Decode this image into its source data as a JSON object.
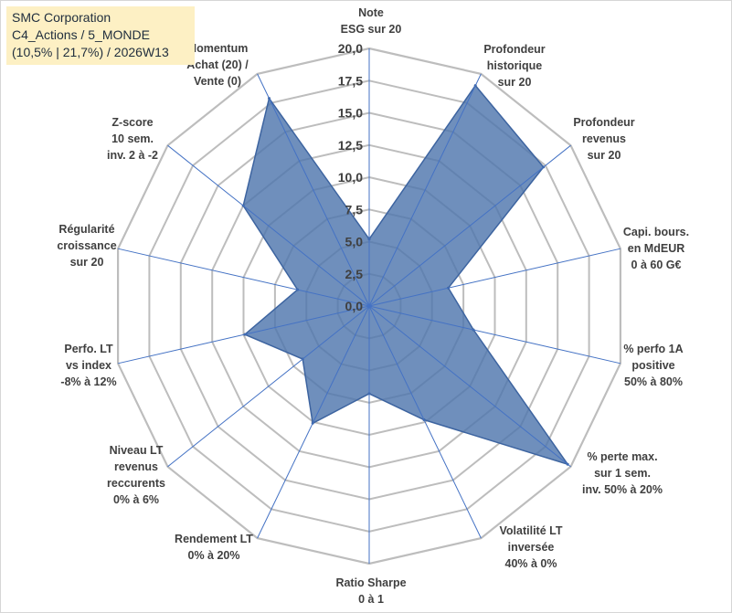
{
  "title_box": {
    "line1": "SMC Corporation",
    "line2": "C4_Actions / 5_MONDE",
    "line3": "(10,5% | 21,7%) / 2026W13"
  },
  "chart_data": {
    "type": "radar",
    "rmax": 20,
    "ticks": [
      "0,0",
      "2,5",
      "5,0",
      "7,5",
      "10,0",
      "12,5",
      "15,0",
      "17,5",
      "20,0"
    ],
    "tick_values": [
      0,
      2.5,
      5,
      7.5,
      10,
      12.5,
      15,
      17.5,
      20
    ],
    "categories": [
      [
        "Note",
        "ESG sur 20"
      ],
      [
        "Profondeur",
        "historique",
        "sur 20"
      ],
      [
        "Profondeur",
        "revenus",
        "sur 20"
      ],
      [
        "Capi. bours.",
        "en MdEUR",
        "0 à 60 G€"
      ],
      [
        "% perfo 1A",
        "positive",
        "50% à 80%"
      ],
      [
        "% perte max.",
        "sur 1 sem.",
        "inv. 50% à 20%"
      ],
      [
        "Volatilité LT",
        "inversée",
        "40% à 0%"
      ],
      [
        "Ratio Sharpe",
        "0 à 1"
      ],
      [
        "Rendement LT",
        "0% à 20%"
      ],
      [
        "Niveau LT",
        "revenus",
        "reccurents",
        "0% à 6%"
      ],
      [
        "Perfo. LT",
        "vs index",
        "-8% à 12%"
      ],
      [
        "Régularité",
        "croissance",
        "sur 20"
      ],
      [
        "Z-score",
        "10 sem.",
        "inv. 2 à -2"
      ],
      [
        "Momentum",
        "Achat (20) /",
        "Vente (0)"
      ]
    ],
    "series": [
      {
        "name": "SMC Corporation",
        "values": [
          5.2,
          19.0,
          17.3,
          6.3,
          8.3,
          19.7,
          9.8,
          6.8,
          10.1,
          6.6,
          9.9,
          5.7,
          12.5,
          17.9
        ]
      }
    ],
    "colors": {
      "fill": "#4f76ad",
      "fill_opacity": 0.82,
      "stroke": "#3d64a0",
      "grid": "#bdbdbd",
      "spoke": "#4472c4"
    }
  }
}
